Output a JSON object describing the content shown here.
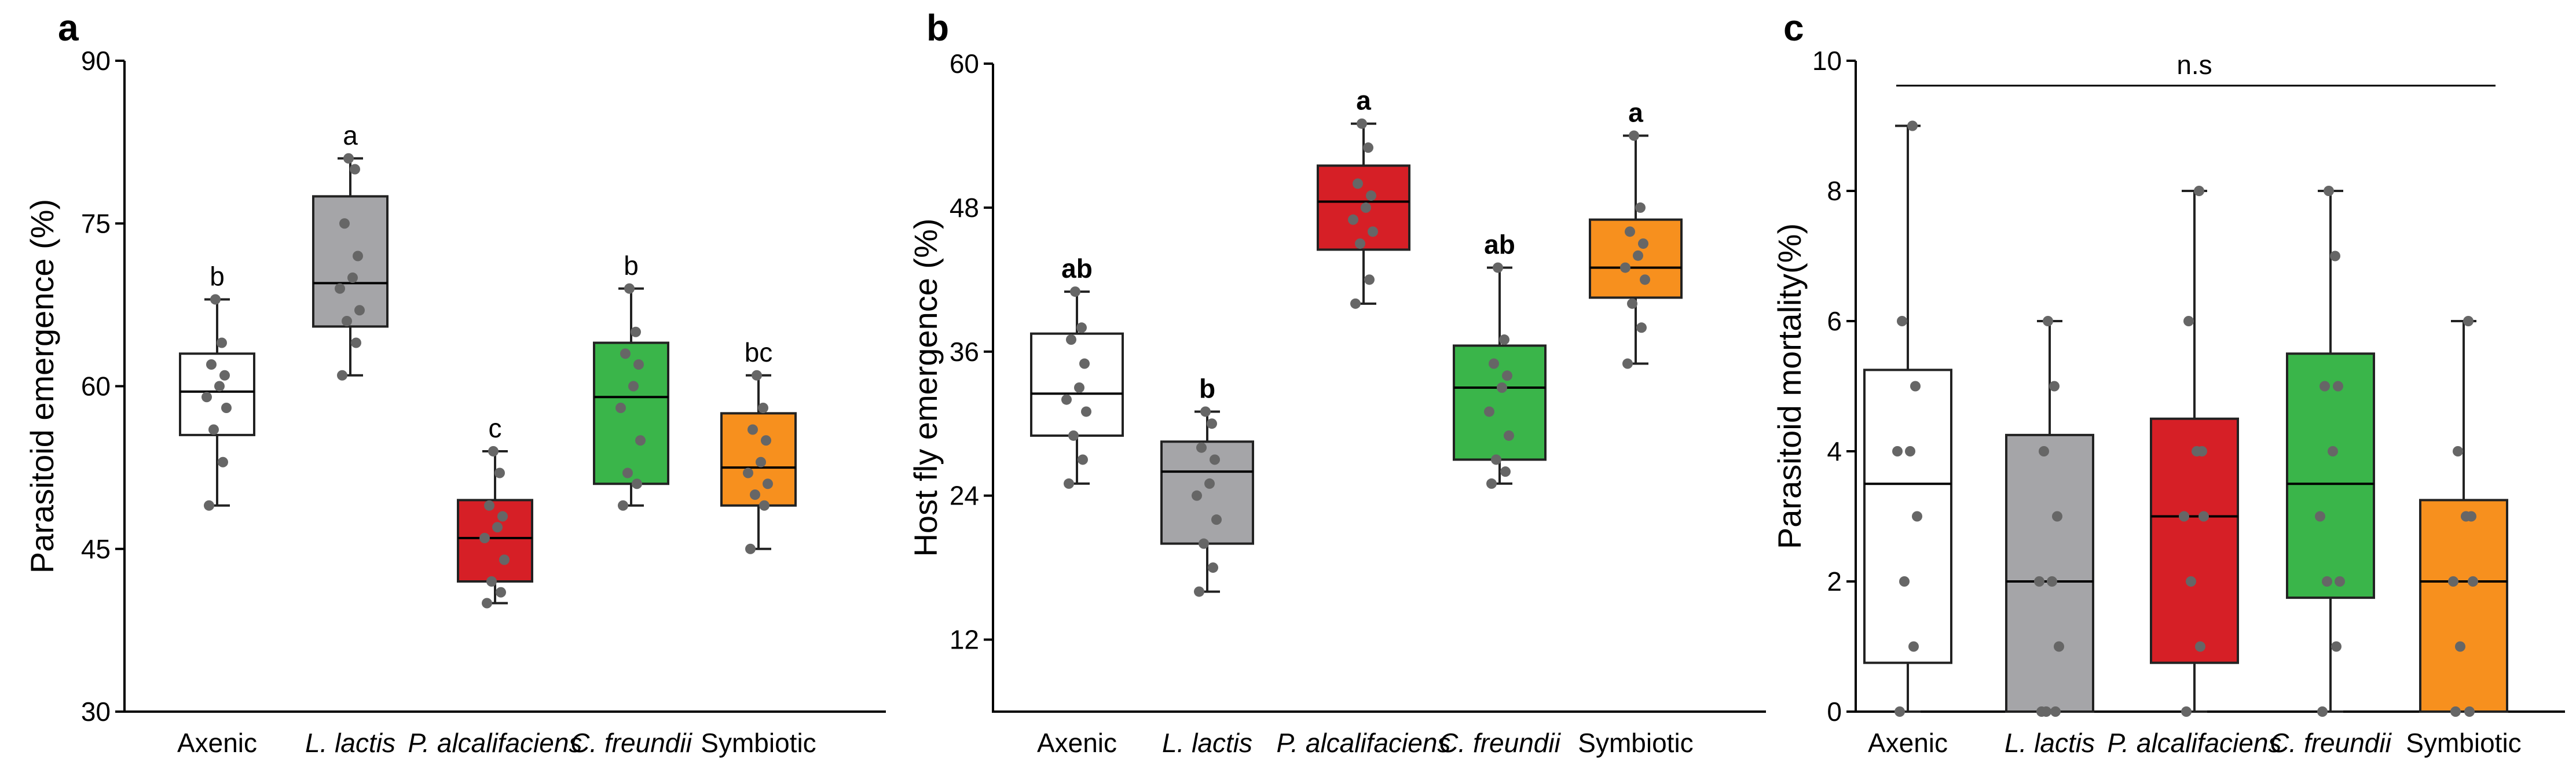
{
  "colors": {
    "Axenic": "#ffffff",
    "L. lactis": "#a5a5a8",
    "P. alcalifaciens": "#d61f26",
    "C. freundii": "#3ab54a",
    "Symbiotic": "#f7901e",
    "point": "#666666",
    "line": "#222222"
  },
  "chart_data": [
    {
      "panel": "a",
      "type": "box",
      "title": "",
      "xlabel": "",
      "ylabel": "Parasitoid emergence (%)",
      "ylim": [
        30,
        90
      ],
      "yticks": [
        30,
        45,
        60,
        75,
        90
      ],
      "letters_bold": false,
      "categories": [
        "Axenic",
        "L. lactis",
        "P. alcalifaciens",
        "C. freundii",
        "Symbiotic"
      ],
      "italic": [
        false,
        true,
        true,
        true,
        false
      ],
      "boxes": [
        {
          "whisker_low": 49,
          "q1": 55.5,
          "median": 59.5,
          "q3": 63,
          "whisker_high": 68,
          "letter": "b",
          "points": [
            49,
            53,
            56,
            58,
            59,
            60,
            61,
            62,
            64,
            68
          ]
        },
        {
          "whisker_low": 61,
          "q1": 65.5,
          "median": 69.5,
          "q3": 77.5,
          "whisker_high": 81,
          "letter": "a",
          "points": [
            61,
            64,
            66,
            67,
            69,
            70,
            72,
            75,
            80,
            81
          ]
        },
        {
          "whisker_low": 40,
          "q1": 42,
          "median": 46,
          "q3": 49.5,
          "whisker_high": 54,
          "letter": "c",
          "points": [
            40,
            41,
            42,
            44,
            46,
            47,
            48,
            49,
            52,
            54
          ]
        },
        {
          "whisker_low": 49,
          "q1": 51,
          "median": 59,
          "q3": 64,
          "whisker_high": 69,
          "letter": "b",
          "points": [
            49,
            51,
            52,
            55,
            58,
            60,
            62,
            63,
            65,
            69
          ]
        },
        {
          "whisker_low": 45,
          "q1": 49,
          "median": 52.5,
          "q3": 57.5,
          "whisker_high": 61,
          "letter": "bc",
          "points": [
            45,
            49,
            50,
            51,
            52,
            53,
            55,
            56,
            58,
            61
          ]
        }
      ]
    },
    {
      "panel": "b",
      "type": "box",
      "title": "",
      "xlabel": "",
      "ylabel": "Host fly emergence (%)",
      "ylim": [
        6,
        60
      ],
      "yticks": [
        12,
        24,
        36,
        48,
        60
      ],
      "letters_bold": true,
      "categories": [
        "Axenic",
        "L. lactis",
        "P. alcalifaciens",
        "C. freundii",
        "Symbiotic"
      ],
      "italic": [
        false,
        true,
        true,
        true,
        false
      ],
      "boxes": [
        {
          "whisker_low": 25,
          "q1": 29,
          "median": 32.5,
          "q3": 37.5,
          "whisker_high": 41,
          "letter": "ab",
          "points": [
            25,
            27,
            29,
            31,
            32,
            33,
            35,
            37,
            38,
            41
          ]
        },
        {
          "whisker_low": 16,
          "q1": 20,
          "median": 26,
          "q3": 28.5,
          "whisker_high": 31,
          "letter": "b",
          "points": [
            16,
            18,
            20,
            22,
            24,
            25,
            27,
            28,
            30,
            31
          ]
        },
        {
          "whisker_low": 40,
          "q1": 44.5,
          "median": 48.5,
          "q3": 51.5,
          "whisker_high": 55,
          "letter": "a",
          "points": [
            40,
            42,
            45,
            46,
            47,
            48,
            49,
            50,
            53,
            55
          ]
        },
        {
          "whisker_low": 25,
          "q1": 27,
          "median": 33,
          "q3": 36.5,
          "whisker_high": 43,
          "letter": "ab",
          "points": [
            25,
            26,
            27,
            29,
            31,
            33,
            34,
            35,
            37,
            43
          ]
        },
        {
          "whisker_low": 35,
          "q1": 40.5,
          "median": 43,
          "q3": 47,
          "whisker_high": 54,
          "letter": "a",
          "points": [
            35,
            38,
            40,
            42,
            43,
            44,
            45,
            46,
            48,
            54
          ]
        }
      ]
    },
    {
      "panel": "c",
      "type": "box",
      "title": "",
      "xlabel": "",
      "ylabel": "Parasitoid mortality(%)",
      "ylim": [
        0,
        10
      ],
      "yticks": [
        0,
        2,
        4,
        6,
        8,
        10
      ],
      "letters_bold": false,
      "annotation": "n.s",
      "categories": [
        "Axenic",
        "L. lactis",
        "P. alcalifaciens",
        "C. freundii",
        "Symbiotic"
      ],
      "italic": [
        false,
        true,
        true,
        true,
        false
      ],
      "boxes": [
        {
          "whisker_low": 0,
          "q1": 0.75,
          "median": 3.5,
          "q3": 5.25,
          "whisker_high": 9,
          "letter": "",
          "points": [
            0,
            1,
            2,
            3,
            4,
            4,
            5,
            6,
            9
          ]
        },
        {
          "whisker_low": 0,
          "q1": 0,
          "median": 2,
          "q3": 4.25,
          "whisker_high": 6,
          "letter": "",
          "points": [
            0,
            0,
            0,
            1,
            2,
            2,
            3,
            4,
            5,
            6
          ]
        },
        {
          "whisker_low": 0,
          "q1": 0.75,
          "median": 3,
          "q3": 4.5,
          "whisker_high": 8,
          "letter": "",
          "points": [
            0,
            1,
            2,
            3,
            3,
            4,
            4,
            6,
            8
          ]
        },
        {
          "whisker_low": 0,
          "q1": 1.75,
          "median": 3.5,
          "q3": 5.5,
          "whisker_high": 8,
          "letter": "",
          "points": [
            0,
            1,
            2,
            2,
            3,
            4,
            5,
            5,
            7,
            8
          ]
        },
        {
          "whisker_low": 0,
          "q1": 0,
          "median": 2,
          "q3": 3.25,
          "whisker_high": 6,
          "letter": "",
          "points": [
            0,
            0,
            1,
            2,
            2,
            3,
            3,
            4,
            6
          ]
        }
      ]
    }
  ]
}
